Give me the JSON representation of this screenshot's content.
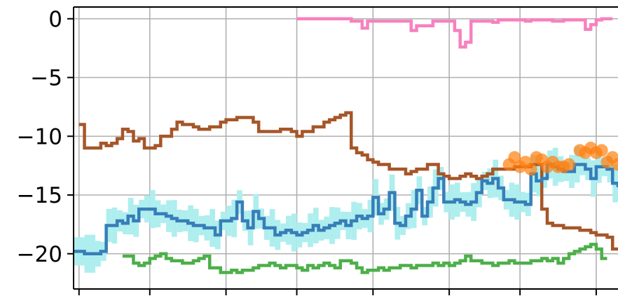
{
  "chart_data": {
    "type": "line",
    "title": "",
    "xlabel": "",
    "ylabel": "",
    "xlim": [
      0,
      100
    ],
    "ylim": [
      -23,
      1.0
    ],
    "grid": true,
    "legend": "none",
    "y_ticks": [
      0,
      -5,
      -10,
      -15,
      -20
    ],
    "y_tick_labels": [
      "0",
      "−5",
      "−10",
      "−15",
      "−20"
    ],
    "x_ticks": [
      1,
      14,
      28,
      41,
      55,
      69,
      82,
      96
    ],
    "series": [
      {
        "color": "#f781bf",
        "style": "step",
        "x": [
          41,
          43,
          45,
          47,
          49,
          50,
          51,
          52,
          53,
          54,
          55,
          56,
          57,
          58,
          59,
          60,
          61,
          62,
          63,
          64,
          65,
          66,
          67,
          68,
          69,
          70,
          71,
          72,
          73,
          74,
          75,
          76,
          77,
          78,
          79,
          80,
          81,
          82,
          83,
          84,
          85,
          86,
          87,
          88,
          89,
          90,
          91,
          92,
          93,
          94,
          95,
          96,
          97,
          98
        ],
        "values": [
          0,
          0,
          0,
          0,
          0,
          0,
          -0.2,
          -0.2,
          -0.8,
          -0.2,
          -0.2,
          -0.2,
          -0.2,
          -0.2,
          -0.2,
          -0.2,
          -0.2,
          -1.0,
          -0.6,
          -0.6,
          -0.6,
          -0.2,
          -0.2,
          -0.2,
          -0.2,
          -1.0,
          -2.4,
          -2.0,
          -0.2,
          -0.2,
          -0.2,
          -0.2,
          -0.3,
          -0.1,
          -0.1,
          -0.1,
          -0.1,
          -0.1,
          -0.2,
          -0.1,
          -0.1,
          -0.1,
          -0.1,
          -0.2,
          -0.2,
          -0.1,
          -0.1,
          -0.1,
          -0.1,
          -0.9,
          -0.5,
          -0.1,
          0,
          0
        ]
      },
      {
        "color": "#a65628",
        "style": "step",
        "x": [
          1,
          2,
          3,
          4,
          5,
          6,
          7,
          8,
          9,
          10,
          11,
          12,
          13,
          14,
          15,
          16,
          17,
          18,
          19,
          20,
          21,
          22,
          23,
          24,
          25,
          26,
          27,
          28,
          29,
          30,
          31,
          32,
          33,
          34,
          35,
          36,
          37,
          38,
          39,
          40,
          41,
          42,
          43,
          44,
          45,
          46,
          47,
          48,
          49,
          50,
          51,
          52,
          53,
          54,
          55,
          56,
          57,
          58,
          59,
          60,
          61,
          62,
          63,
          64,
          65,
          66,
          67,
          68,
          69,
          70,
          71,
          72,
          73,
          74,
          75,
          76,
          77,
          78,
          79,
          80,
          81,
          82,
          83,
          84,
          85,
          86,
          87,
          88,
          89,
          90,
          91,
          92,
          93,
          94,
          95,
          96,
          97,
          98,
          99,
          100
        ],
        "values": [
          -9,
          -11,
          -11,
          -11,
          -10.6,
          -10.8,
          -10.6,
          -10.2,
          -9.4,
          -9.6,
          -10.4,
          -10.2,
          -11,
          -11,
          -10.8,
          -10,
          -10,
          -9.4,
          -8.8,
          -9,
          -9,
          -9.2,
          -9.4,
          -9.4,
          -9.2,
          -9.2,
          -8.8,
          -8.6,
          -8.6,
          -8.4,
          -8.4,
          -8.4,
          -8.8,
          -9.6,
          -9.6,
          -9.6,
          -9.6,
          -9.4,
          -9.4,
          -9.6,
          -10,
          -9.6,
          -9.6,
          -9.2,
          -9.2,
          -8.8,
          -8.6,
          -8.4,
          -8.2,
          -8,
          -11,
          -11.4,
          -11.6,
          -12,
          -12.2,
          -12.4,
          -12.4,
          -12.8,
          -12.8,
          -12.8,
          -13.2,
          -13,
          -12.8,
          -12.8,
          -12.4,
          -12.4,
          -13.2,
          -13.4,
          -13.6,
          -13.6,
          -13.4,
          -13.2,
          -13.4,
          -13.6,
          -13.4,
          -13.2,
          -12.8,
          -12.8,
          -12.8,
          -12.8,
          -12.6,
          -12.6,
          -12.6,
          -12.4,
          -12.4,
          -16.2,
          -17.4,
          -17.6,
          -17.6,
          -17.8,
          -17.8,
          -17.8,
          -18,
          -18,
          -18.2,
          -18.4,
          -18.4,
          -18.6,
          -19.6,
          -19.6
        ]
      },
      {
        "color": "#377eb8",
        "style": "step",
        "band_color": "#aeeeee",
        "band_halfwidth": 1.2,
        "x": [
          0,
          2,
          4,
          5,
          6,
          7,
          8,
          9,
          10,
          11,
          12,
          13,
          14,
          15,
          16,
          17,
          18,
          19,
          20,
          21,
          22,
          23,
          24,
          25,
          26,
          27,
          28,
          29,
          30,
          31,
          32,
          33,
          34,
          35,
          36,
          37,
          38,
          39,
          40,
          41,
          42,
          43,
          44,
          45,
          46,
          47,
          48,
          49,
          50,
          51,
          52,
          53,
          54,
          55,
          56,
          57,
          58,
          59,
          60,
          61,
          62,
          63,
          64,
          65,
          66,
          67,
          68,
          69,
          70,
          71,
          72,
          73,
          74,
          75,
          76,
          77,
          78,
          79,
          80,
          81,
          82,
          83,
          84,
          85,
          86,
          87,
          88,
          89,
          90,
          91,
          92,
          93,
          94,
          95,
          96,
          97,
          98,
          99,
          100
        ],
        "values": [
          -19.8,
          -20,
          -20,
          -19.8,
          -17.6,
          -17.6,
          -17.2,
          -17.4,
          -16.8,
          -17.2,
          -16.2,
          -16.2,
          -16.2,
          -16.6,
          -16.6,
          -16.8,
          -17.0,
          -17.2,
          -17.2,
          -17.4,
          -17.6,
          -17.6,
          -17.8,
          -17.8,
          -18.4,
          -17.2,
          -17.2,
          -17.0,
          -15.6,
          -17.2,
          -17.8,
          -16.4,
          -17.0,
          -17.8,
          -17.8,
          -18.4,
          -18.2,
          -18.0,
          -18.2,
          -18.4,
          -18.2,
          -18.0,
          -17.6,
          -18.0,
          -17.8,
          -17.6,
          -17.4,
          -17.2,
          -17.6,
          -17.2,
          -16.8,
          -17.0,
          -16.8,
          -15.2,
          -16.6,
          -16.2,
          -14.8,
          -17.4,
          -17.6,
          -16.8,
          -16.2,
          -14.6,
          -16.8,
          -15.6,
          -14.4,
          -13.6,
          -15.6,
          -15.6,
          -15.4,
          -15.6,
          -15.8,
          -15.6,
          -14.8,
          -13.8,
          -14.0,
          -13.6,
          -14.4,
          -15.4,
          -15.4,
          -15.6,
          -15.6,
          -15.8,
          -13.2,
          -13.8,
          -13.6,
          -12.4,
          -12.6,
          -12.8,
          -13.0,
          -13.0,
          -12.4,
          -12.4,
          -12.8,
          -13.6,
          -12.6,
          -12.6,
          -12.8,
          -14.0,
          -14.2
        ]
      },
      {
        "color": "#4daf4a",
        "style": "step",
        "x": [
          9,
          10,
          11,
          12,
          13,
          14,
          15,
          16,
          17,
          18,
          19,
          20,
          21,
          22,
          23,
          24,
          25,
          26,
          27,
          28,
          29,
          30,
          31,
          32,
          33,
          34,
          35,
          36,
          37,
          38,
          39,
          40,
          41,
          42,
          43,
          44,
          45,
          46,
          47,
          48,
          49,
          50,
          51,
          52,
          53,
          54,
          55,
          56,
          57,
          58,
          59,
          60,
          61,
          62,
          63,
          64,
          65,
          66,
          67,
          68,
          69,
          70,
          71,
          72,
          73,
          74,
          75,
          76,
          77,
          78,
          79,
          80,
          81,
          82,
          83,
          84,
          85,
          86,
          87,
          88,
          89,
          90,
          91,
          92,
          93,
          94,
          95,
          96,
          97
        ],
        "values": [
          -20.2,
          -20.2,
          -20.8,
          -21,
          -20.8,
          -20.4,
          -20.2,
          -20,
          -20.4,
          -20.6,
          -20.6,
          -20.8,
          -20.8,
          -20.6,
          -20.4,
          -20.2,
          -21.2,
          -21.2,
          -21.6,
          -21.6,
          -21.4,
          -21.6,
          -21.4,
          -21.4,
          -21.2,
          -21.0,
          -21.0,
          -20.8,
          -21.0,
          -21.2,
          -21.0,
          -21.0,
          -21.2,
          -21.4,
          -21.0,
          -21.2,
          -21.0,
          -20.8,
          -21.0,
          -21.2,
          -20.6,
          -20.6,
          -20.8,
          -21.2,
          -21.6,
          -21.4,
          -21.4,
          -21.2,
          -21.4,
          -21.2,
          -21.2,
          -21.0,
          -21.0,
          -21.2,
          -21.0,
          -21.0,
          -21.0,
          -20.8,
          -21.0,
          -20.8,
          -21.0,
          -20.8,
          -20.6,
          -20.2,
          -20.6,
          -20.6,
          -20.8,
          -20.8,
          -21.0,
          -20.8,
          -20.8,
          -20.6,
          -20.8,
          -20.8,
          -20.8,
          -20.6,
          -20.6,
          -20.4,
          -20.6,
          -20.4,
          -20.8,
          -20.4,
          -20.0,
          -19.8,
          -19.6,
          -19.4,
          -19.2,
          -19.6,
          -20.4
        ]
      }
    ],
    "scatter": {
      "color": "#ff7f0e",
      "opacity": 0.7,
      "x": [
        80,
        81,
        82,
        83,
        84,
        85,
        86,
        87,
        88,
        89,
        90,
        91,
        93,
        94,
        95,
        96,
        97,
        98,
        99,
        100
      ],
      "values": [
        -12.4,
        -11.8,
        -12.6,
        -12.2,
        -12.8,
        -11.8,
        -12.0,
        -12.6,
        -12.2,
        -12.6,
        -12.6,
        -12.4,
        -11.2,
        -11.4,
        -11.0,
        -11.4,
        -11.2,
        -12.2,
        -11.8,
        -12.4
      ]
    }
  }
}
